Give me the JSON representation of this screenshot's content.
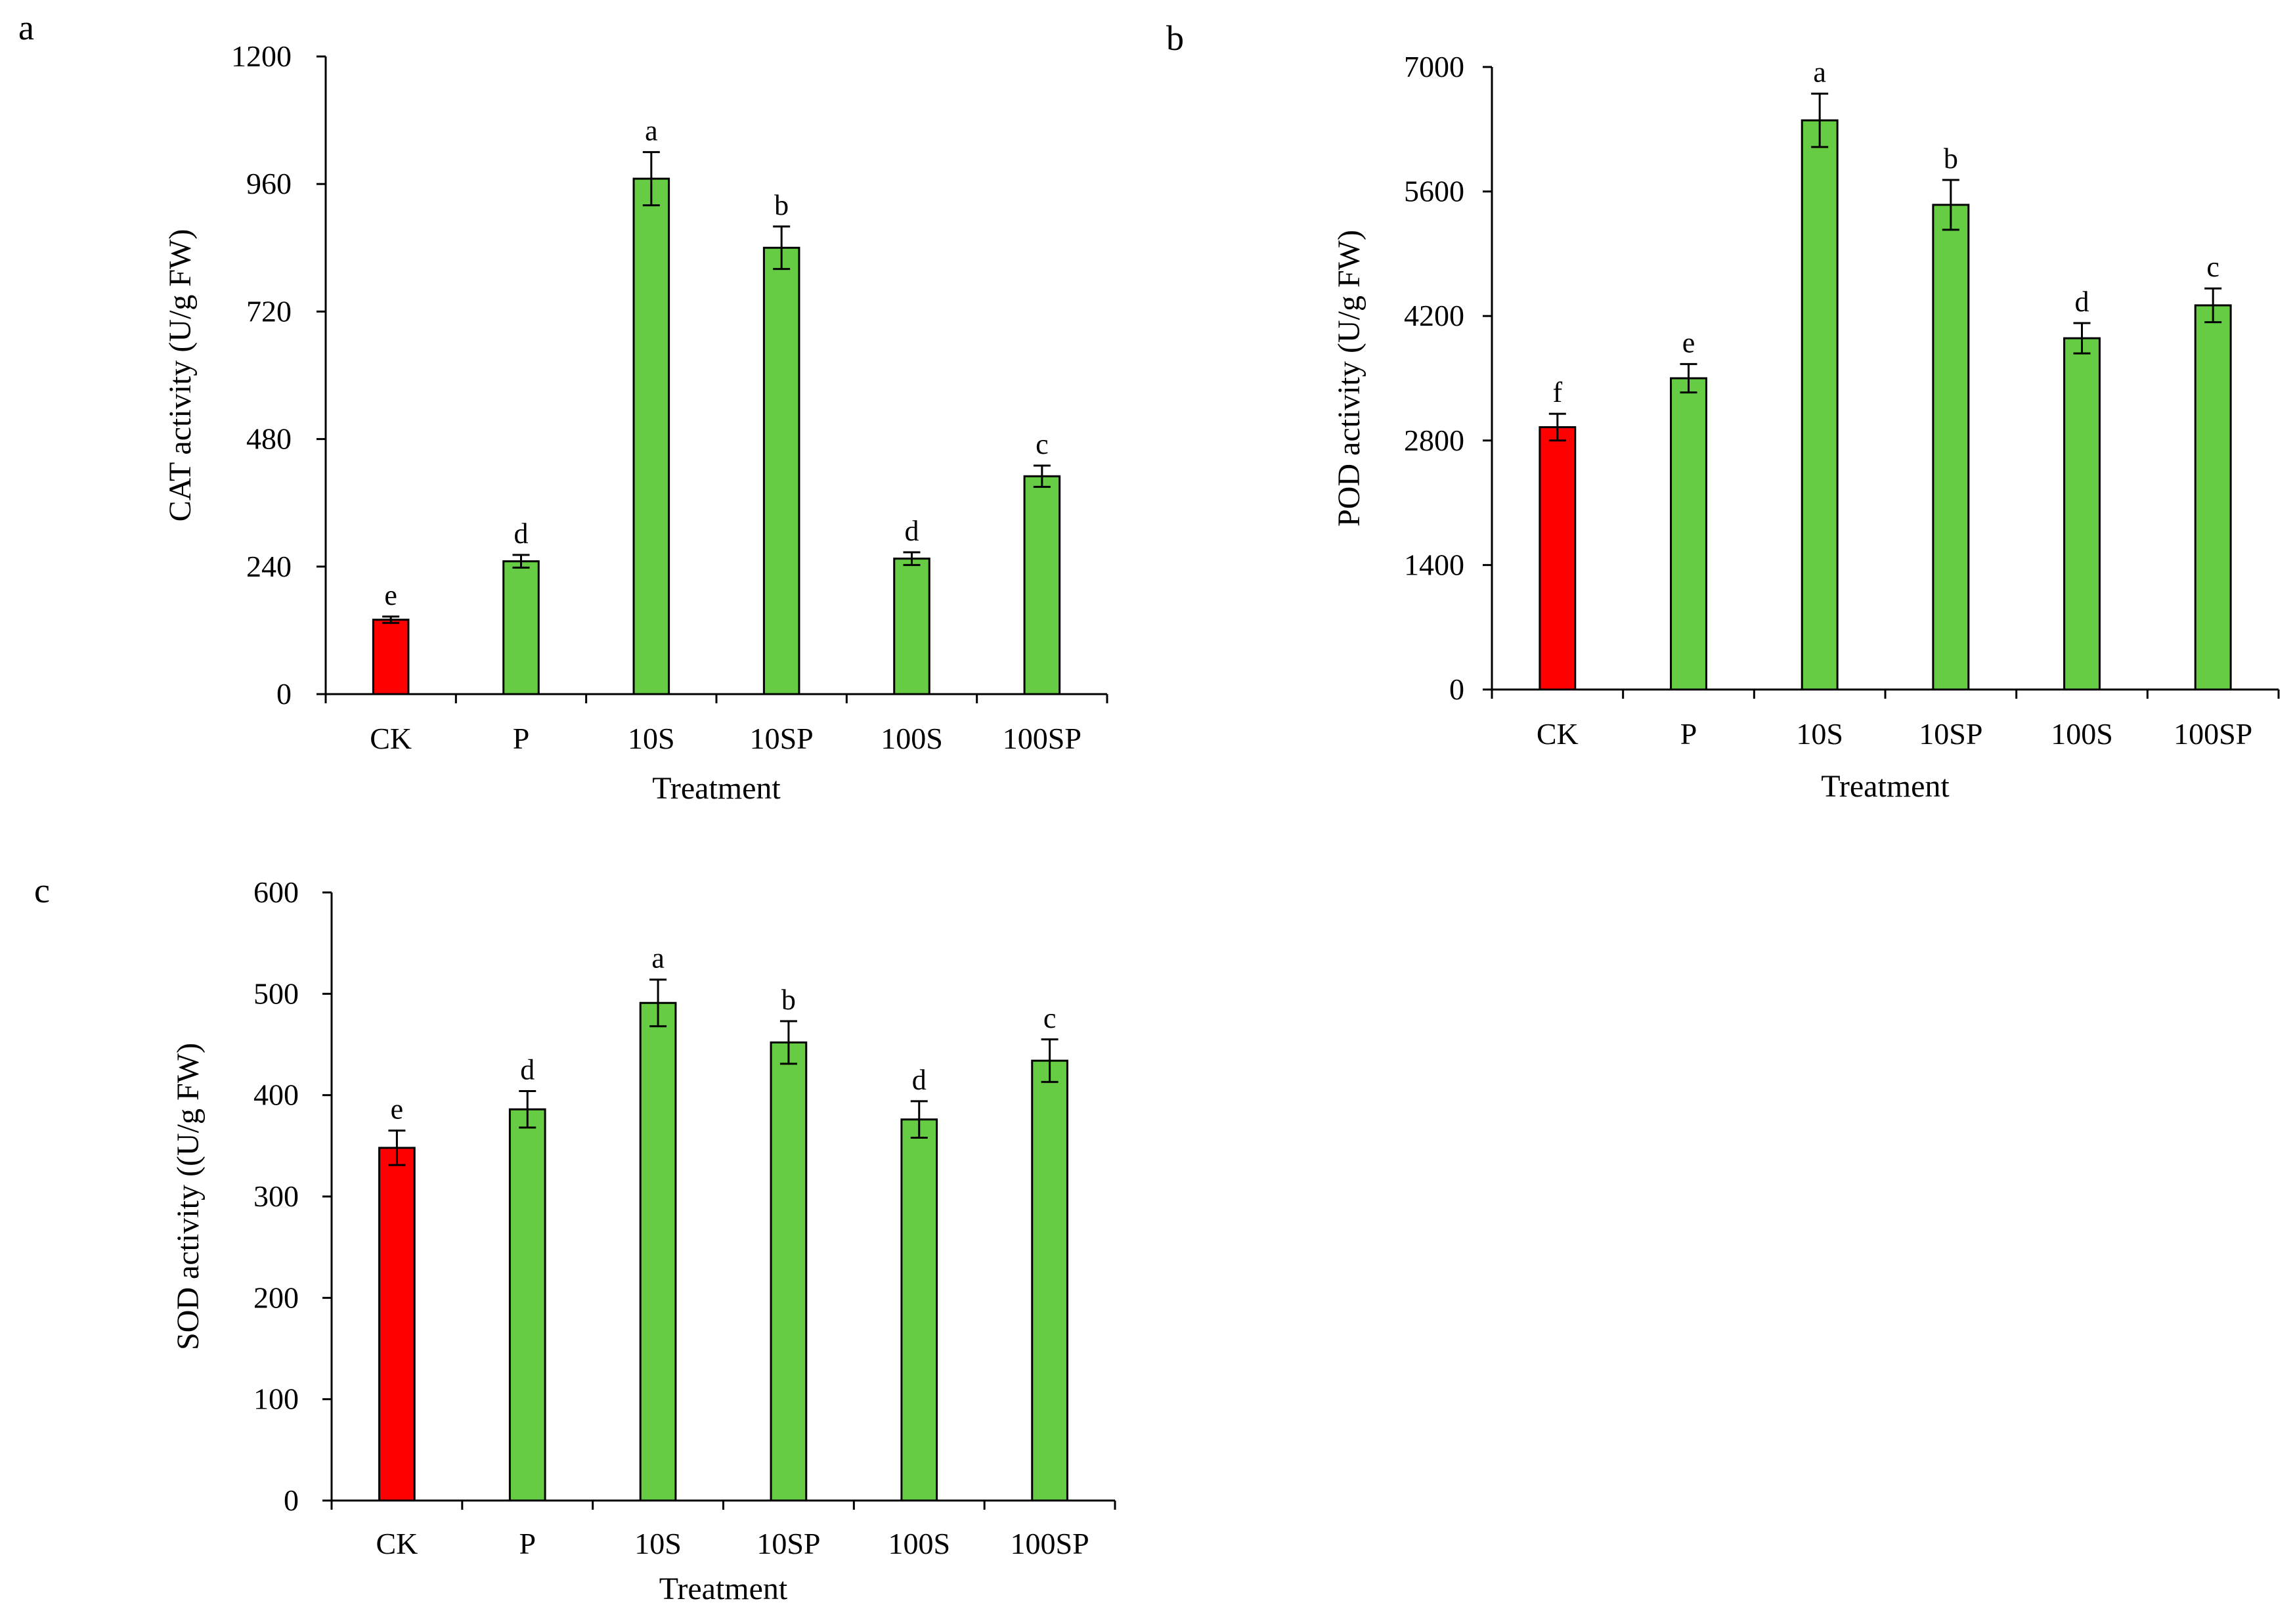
{
  "chart_data": [
    {
      "panel_label": "a",
      "type": "bar",
      "categories": [
        "CK",
        "P",
        "10S",
        "10SP",
        "100S",
        "100SP"
      ],
      "values": [
        140,
        250,
        970,
        840,
        255,
        410
      ],
      "errors": [
        6,
        12,
        50,
        40,
        12,
        20
      ],
      "significance": [
        "e",
        "d",
        "a",
        "b",
        "d",
        "c"
      ],
      "bar_colors": [
        "#ff0000",
        "#66cc44",
        "#66cc44",
        "#66cc44",
        "#66cc44",
        "#66cc44"
      ],
      "xlabel": "Treatment",
      "ylabel": "CAT activity (U/g FW)",
      "ylim": [
        0,
        1200
      ],
      "yticks": [
        0,
        240,
        480,
        720,
        960,
        1200
      ],
      "grid": false,
      "legend": "none"
    },
    {
      "panel_label": "b",
      "type": "bar",
      "categories": [
        "CK",
        "P",
        "10S",
        "10SP",
        "100S",
        "100SP"
      ],
      "values": [
        2950,
        3500,
        6400,
        5450,
        3950,
        4320
      ],
      "errors": [
        150,
        160,
        300,
        280,
        170,
        190
      ],
      "significance": [
        "f",
        "e",
        "a",
        "b",
        "d",
        "c"
      ],
      "bar_colors": [
        "#ff0000",
        "#66cc44",
        "#66cc44",
        "#66cc44",
        "#66cc44",
        "#66cc44"
      ],
      "xlabel": "Treatment",
      "ylabel": "POD activity (U/g FW)",
      "ylim": [
        0,
        7000
      ],
      "yticks": [
        0,
        1400,
        2800,
        4200,
        5600,
        7000
      ],
      "grid": false,
      "legend": "none"
    },
    {
      "panel_label": "c",
      "type": "bar",
      "categories": [
        "CK",
        "P",
        "10S",
        "10SP",
        "100S",
        "100SP"
      ],
      "values": [
        348,
        386,
        491,
        452,
        376,
        434
      ],
      "errors": [
        17,
        18,
        23,
        21,
        18,
        21
      ],
      "significance": [
        "e",
        "d",
        "a",
        "b",
        "d",
        "c"
      ],
      "bar_colors": [
        "#ff0000",
        "#66cc44",
        "#66cc44",
        "#66cc44",
        "#66cc44",
        "#66cc44"
      ],
      "xlabel": "Treatment",
      "ylabel": "SOD activity ((U/g FW)",
      "ylim": [
        0,
        600
      ],
      "yticks": [
        0,
        100,
        200,
        300,
        400,
        500,
        600
      ],
      "grid": false,
      "legend": "none"
    }
  ]
}
